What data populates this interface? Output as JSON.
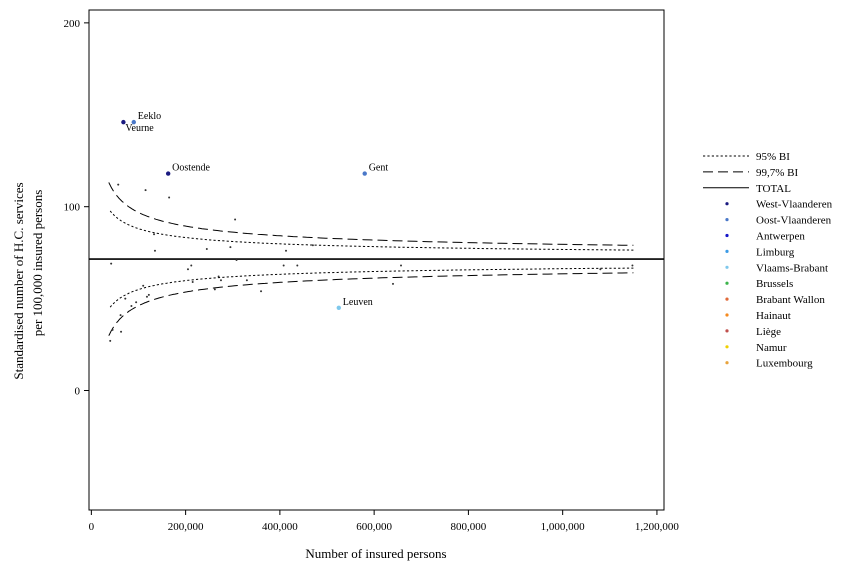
{
  "chart_data": {
    "type": "scatter",
    "title": "",
    "xlabel": "Number of insured persons",
    "ylabel_lines": [
      "Standardised number of H.C. services",
      "per 100,000 insured persons"
    ],
    "xlim": [
      -5000,
      1215000
    ],
    "ylim": [
      -65,
      207
    ],
    "x_ticks": [
      0,
      200000,
      400000,
      600000,
      800000,
      1000000,
      1200000
    ],
    "x_tick_labels": [
      "0",
      "200,000",
      "400,000",
      "600,000",
      "800,000",
      "1,000,000",
      "1,200,000"
    ],
    "y_ticks": [
      0,
      100,
      200
    ],
    "y_tick_labels": [
      "0",
      "100",
      "200"
    ],
    "total_rate": 71.5,
    "reference_lines": [
      {
        "name": "95% BI",
        "style": "dotted",
        "z": 1.96,
        "x": [
          40000,
          60000,
          80000,
          100000,
          130000,
          160000,
          200000,
          250000,
          300000,
          400000,
          500000,
          600000,
          700000,
          800000,
          900000,
          1000000,
          1150000
        ]
      },
      {
        "name": "99,7% BI",
        "style": "dashed",
        "z": 3.0,
        "x": [
          37000,
          50000,
          65000,
          80000,
          100000,
          130000,
          160000,
          200000,
          250000,
          300000,
          400000,
          500000,
          600000,
          700000,
          800000,
          900000,
          1000000,
          1150000
        ]
      }
    ],
    "series": [
      {
        "name": "West-Vlaanderen",
        "color": "#1a1a80",
        "points": [
          {
            "x": 68000,
            "y": 146,
            "label": "Veurne"
          },
          {
            "x": 163000,
            "y": 118,
            "label": "Oostende"
          }
        ]
      },
      {
        "name": "Oost-Vlaanderen",
        "color": "#4a78c8",
        "points": [
          {
            "x": 90000,
            "y": 146,
            "label": "Eeklo"
          },
          {
            "x": 580000,
            "y": 118,
            "label": "Gent"
          }
        ]
      },
      {
        "name": "Antwerpen",
        "color": "#1515c8",
        "points": []
      },
      {
        "name": "Limburg",
        "color": "#3c9be6",
        "points": []
      },
      {
        "name": "Vlaams-Brabant",
        "color": "#7ec8ec",
        "points": [
          {
            "x": 525000,
            "y": 45,
            "label": "Leuven"
          }
        ]
      },
      {
        "name": "Brussels",
        "color": "#3cb44b",
        "points": []
      },
      {
        "name": "Brabant Wallon",
        "color": "#e06a3a",
        "points": []
      },
      {
        "name": "Hainaut",
        "color": "#f58a1f",
        "points": []
      },
      {
        "name": "Liège",
        "color": "#c0504d",
        "points": []
      },
      {
        "name": "Namur",
        "color": "#f0d000",
        "points": []
      },
      {
        "name": "Luxembourg",
        "color": "#e8a33c",
        "points": []
      }
    ],
    "other_points": [
      {
        "x": 40000,
        "y": 27
      },
      {
        "x": 42000,
        "y": 69
      },
      {
        "x": 45000,
        "y": 33
      },
      {
        "x": 57000,
        "y": 112
      },
      {
        "x": 62000,
        "y": 41
      },
      {
        "x": 63000,
        "y": 32
      },
      {
        "x": 72000,
        "y": 50
      },
      {
        "x": 85000,
        "y": 46
      },
      {
        "x": 95000,
        "y": 48
      },
      {
        "x": 110000,
        "y": 57
      },
      {
        "x": 115000,
        "y": 109
      },
      {
        "x": 118000,
        "y": 51
      },
      {
        "x": 122000,
        "y": 52
      },
      {
        "x": 133000,
        "y": 85
      },
      {
        "x": 135000,
        "y": 76
      },
      {
        "x": 165000,
        "y": 105
      },
      {
        "x": 205000,
        "y": 66
      },
      {
        "x": 212000,
        "y": 68
      },
      {
        "x": 215000,
        "y": 59
      },
      {
        "x": 245000,
        "y": 77
      },
      {
        "x": 262000,
        "y": 55
      },
      {
        "x": 270000,
        "y": 62
      },
      {
        "x": 275000,
        "y": 60
      },
      {
        "x": 295000,
        "y": 78
      },
      {
        "x": 305000,
        "y": 93
      },
      {
        "x": 308000,
        "y": 71
      },
      {
        "x": 330000,
        "y": 60
      },
      {
        "x": 360000,
        "y": 54
      },
      {
        "x": 408000,
        "y": 68
      },
      {
        "x": 413000,
        "y": 76
      },
      {
        "x": 437000,
        "y": 68
      },
      {
        "x": 470000,
        "y": 79
      },
      {
        "x": 640000,
        "y": 58
      },
      {
        "x": 657000,
        "y": 68
      },
      {
        "x": 1080000,
        "y": 66
      },
      {
        "x": 1148000,
        "y": 68
      }
    ],
    "legend_position": "right",
    "legend": [
      {
        "label": "95% BI",
        "kind": "dotted"
      },
      {
        "label": "99,7% BI",
        "kind": "dashed"
      },
      {
        "label": "TOTAL",
        "kind": "solid"
      },
      {
        "label": "West-Vlaanderen",
        "kind": "dot",
        "color": "#1a1a80"
      },
      {
        "label": "Oost-Vlaanderen",
        "kind": "dot",
        "color": "#4a78c8"
      },
      {
        "label": "Antwerpen",
        "kind": "dot",
        "color": "#1515c8"
      },
      {
        "label": "Limburg",
        "kind": "dot",
        "color": "#3c9be6"
      },
      {
        "label": "Vlaams-Brabant",
        "kind": "dot",
        "color": "#7ec8ec"
      },
      {
        "label": "Brussels",
        "kind": "dot",
        "color": "#3cb44b"
      },
      {
        "label": "Brabant Wallon",
        "kind": "dot",
        "color": "#e06a3a"
      },
      {
        "label": "Hainaut",
        "kind": "dot",
        "color": "#f58a1f"
      },
      {
        "label": "Liège",
        "kind": "dot",
        "color": "#c0504d"
      },
      {
        "label": "Namur",
        "kind": "dot",
        "color": "#f0d000"
      },
      {
        "label": "Luxembourg",
        "kind": "dot",
        "color": "#e8a33c"
      }
    ]
  }
}
